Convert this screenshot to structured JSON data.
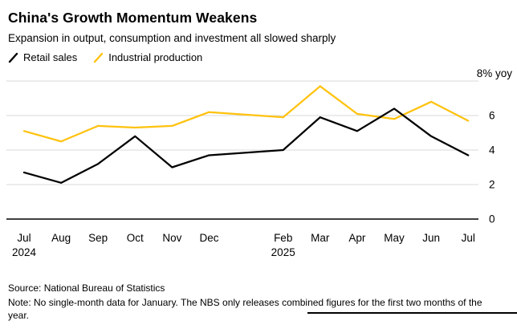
{
  "header": {
    "title": "China's Growth Momentum Weakens",
    "subtitle": "Expansion in output, consumption and investment all slowed sharply"
  },
  "legend": [
    {
      "label": "Retail sales",
      "color": "#000000"
    },
    {
      "label": "Industrial production",
      "color": "#ffc20e"
    }
  ],
  "chart_data": {
    "type": "line",
    "title": "China's Growth Momentum Weakens",
    "subtitle": "Expansion in output, consumption and investment all slowed sharply",
    "categories": [
      "Jul",
      "Aug",
      "Sep",
      "Oct",
      "Nov",
      "Dec",
      "Feb",
      "Mar",
      "Apr",
      "May",
      "Jun",
      "Jul"
    ],
    "slots": [
      0,
      1,
      2,
      3,
      4,
      5,
      7,
      8,
      9,
      10,
      11,
      12
    ],
    "skipped_month": "Jan",
    "year_labels": [
      {
        "text": "2024",
        "slot": 0
      },
      {
        "text": "2025",
        "slot": 7
      }
    ],
    "series": [
      {
        "name": "Retail sales",
        "color": "#000000",
        "values": [
          2.7,
          2.1,
          3.2,
          4.8,
          3.0,
          3.7,
          4.0,
          5.9,
          5.1,
          6.4,
          4.8,
          3.7
        ]
      },
      {
        "name": "Industrial production",
        "color": "#ffc20e",
        "values": [
          5.1,
          4.5,
          5.4,
          5.3,
          5.4,
          6.2,
          5.9,
          7.7,
          6.1,
          5.8,
          6.8,
          5.7
        ]
      }
    ],
    "ylim": [
      0,
      8
    ],
    "yticks": [
      0,
      2,
      4,
      6
    ],
    "ytick_top_label": "8% yoy",
    "unit": "% yoy",
    "grid": true,
    "legend_position": "top-left",
    "colors": {
      "grid": "#d8d8d8",
      "axis": "#000000"
    }
  },
  "footer": {
    "source": "Source: National Bureau of Statistics",
    "note": "Note: No single-month data for January. The NBS only releases combined figures for the first two months of the year."
  }
}
